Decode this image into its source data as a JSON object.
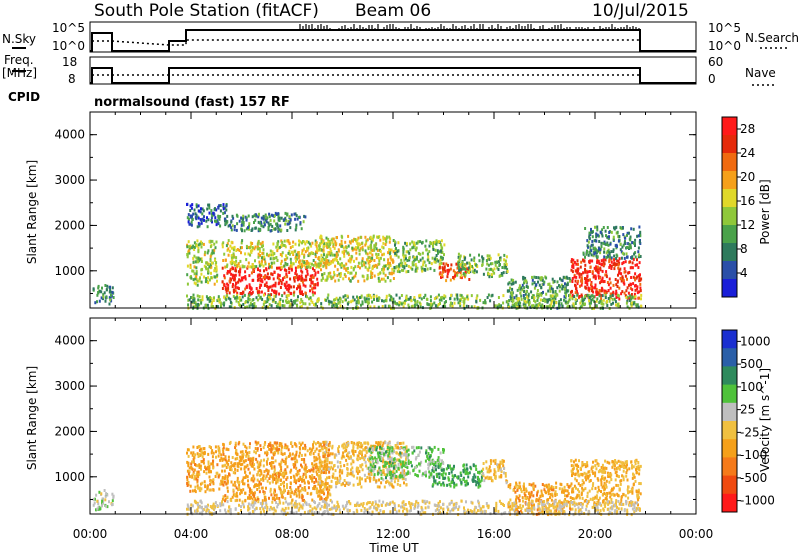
{
  "header": {
    "station": "South Pole Station (fitACF)",
    "beam": "Beam 06",
    "date": "10/Jul/2015"
  },
  "param_panels": {
    "nsky_label": "N.Sky",
    "nsky_ticks": [
      "10^5",
      "10^0"
    ],
    "nsearch_label": "N.Search",
    "nsearch_ticks": [
      "10^5",
      "10^0"
    ],
    "freq_label_1": "Freq.",
    "freq_label_2": "[MHz]",
    "freq_ticks": [
      "18",
      "8"
    ],
    "nave_label": "Nave",
    "nave_ticks": [
      "60",
      "0"
    ],
    "cpid_label": "CPID",
    "cpid_text": "normalsound (fast) 157 RF"
  },
  "chart_data": [
    {
      "type": "heatmap",
      "title": "Power",
      "xlabel": "Time UT",
      "ylabel": "Slant Range [km]",
      "x_ticks": [
        "00:00",
        "04:00",
        "08:00",
        "12:00",
        "16:00",
        "20:00",
        "00:00"
      ],
      "y_ticks": [
        "1000",
        "2000",
        "3000",
        "4000"
      ],
      "xlim_hours": [
        0,
        24
      ],
      "ylim_km": [
        180,
        4500
      ],
      "colorbar_label": "Power [dB]",
      "colorbar_ticks": [
        "4",
        "8",
        "12",
        "16",
        "20",
        "24",
        "28"
      ],
      "colorbar_range": [
        0,
        30
      ],
      "scatter_regions": [
        {
          "t_start": 0.1,
          "t_end": 0.9,
          "r_start": 300,
          "r_end": 750,
          "value": 8
        },
        {
          "t_start": 3.8,
          "t_end": 5.0,
          "r_start": 700,
          "r_end": 1700,
          "value": 14
        },
        {
          "t_start": 3.8,
          "t_end": 5.5,
          "r_start": 2000,
          "r_end": 2500,
          "value": 6
        },
        {
          "t_start": 5.2,
          "t_end": 9.0,
          "r_start": 500,
          "r_end": 1100,
          "value": 28
        },
        {
          "t_start": 5.2,
          "t_end": 9.5,
          "r_start": 1100,
          "r_end": 1700,
          "value": 16
        },
        {
          "t_start": 5.5,
          "t_end": 8.5,
          "r_start": 1900,
          "r_end": 2300,
          "value": 8
        },
        {
          "t_start": 9.0,
          "t_end": 12.0,
          "r_start": 800,
          "r_end": 1800,
          "value": 16
        },
        {
          "t_start": 12.0,
          "t_end": 14.0,
          "r_start": 1000,
          "r_end": 1700,
          "value": 12
        },
        {
          "t_start": 13.8,
          "t_end": 15.0,
          "r_start": 800,
          "r_end": 1200,
          "value": 24
        },
        {
          "t_start": 14.5,
          "t_end": 16.5,
          "r_start": 900,
          "r_end": 1400,
          "value": 12
        },
        {
          "t_start": 16.5,
          "t_end": 19.0,
          "r_start": 200,
          "r_end": 900,
          "value": 10
        },
        {
          "t_start": 19.0,
          "t_end": 21.8,
          "r_start": 400,
          "r_end": 1300,
          "value": 27
        },
        {
          "t_start": 19.5,
          "t_end": 21.8,
          "r_start": 1300,
          "r_end": 2000,
          "value": 8
        },
        {
          "t_start": 3.8,
          "t_end": 21.8,
          "r_start": 200,
          "r_end": 500,
          "value": 12
        }
      ]
    },
    {
      "type": "heatmap",
      "xlabel": "Time UT",
      "ylabel": "Slant Range [km]",
      "x_ticks": [
        "00:00",
        "04:00",
        "08:00",
        "12:00",
        "16:00",
        "20:00",
        "00:00"
      ],
      "y_ticks": [
        "1000",
        "2000",
        "3000",
        "4000"
      ],
      "xlim_hours": [
        0,
        24
      ],
      "ylim_km": [
        180,
        4500
      ],
      "colorbar_label": "Velocity [m s^-1]",
      "colorbar_ticks": [
        "1000",
        "500",
        "100",
        "25",
        "-25",
        "-100",
        "-500",
        "-1000"
      ],
      "colorbar_range": [
        -1200,
        1200
      ],
      "scatter_regions": [
        {
          "t_start": 0.1,
          "t_end": 0.9,
          "r_start": 300,
          "r_end": 750,
          "value": 150
        },
        {
          "t_start": 3.8,
          "t_end": 5.2,
          "r_start": 700,
          "r_end": 1700,
          "value": -350
        },
        {
          "t_start": 5.2,
          "t_end": 9.5,
          "r_start": 500,
          "r_end": 1800,
          "value": -350
        },
        {
          "t_start": 9.0,
          "t_end": 12.5,
          "r_start": 800,
          "r_end": 1800,
          "value": -150
        },
        {
          "t_start": 11.0,
          "t_end": 14.0,
          "r_start": 1000,
          "r_end": 1700,
          "value": 300
        },
        {
          "t_start": 13.5,
          "t_end": 15.5,
          "r_start": 800,
          "r_end": 1300,
          "value": 500
        },
        {
          "t_start": 15.5,
          "t_end": 16.5,
          "r_start": 900,
          "r_end": 1400,
          "value": -150
        },
        {
          "t_start": 16.5,
          "t_end": 19.0,
          "r_start": 200,
          "r_end": 900,
          "value": -350
        },
        {
          "t_start": 19.0,
          "t_end": 21.8,
          "r_start": 400,
          "r_end": 1400,
          "value": -250
        },
        {
          "t_start": 3.8,
          "t_end": 21.8,
          "r_start": 200,
          "r_end": 500,
          "value": 0
        }
      ]
    }
  ],
  "colors": {
    "power_scale": [
      "#1a1fd8",
      "#2a4fa8",
      "#2e7a5c",
      "#4aa24a",
      "#8fc83a",
      "#e0d82a",
      "#f5a01a",
      "#f06a10",
      "#e52a0a",
      "#ff1a1a"
    ],
    "velocity_scale": [
      "#ff1a1a",
      "#f04a10",
      "#f57a1a",
      "#f5a01a",
      "#f0c040",
      "#bfbfbf",
      "#4fc23a",
      "#2e8a5c",
      "#2a5fa8",
      "#1a2fd0"
    ]
  }
}
